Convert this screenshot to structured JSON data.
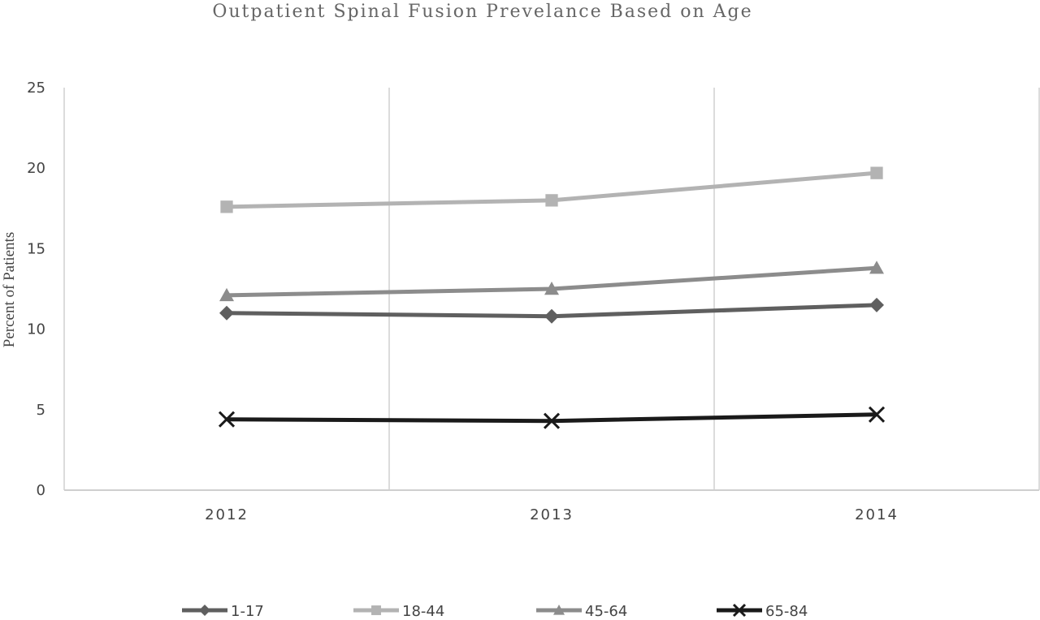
{
  "chart_data": {
    "type": "line",
    "title": "Outpatient Spinal Fusion Prevelance Based on Age",
    "xlabel": "",
    "ylabel": "Percent of Patients",
    "categories": [
      "2012",
      "2013",
      "2014"
    ],
    "ylim": [
      0,
      25
    ],
    "yticks": [
      "0",
      "5",
      "10",
      "15",
      "20",
      "25"
    ],
    "grid": "vertical",
    "legend_position": "bottom",
    "series": [
      {
        "name": "1-17",
        "values": [
          11.0,
          10.8,
          11.5
        ],
        "color": "#5f5f5f",
        "marker": "diamond"
      },
      {
        "name": "18-44",
        "values": [
          17.6,
          18.0,
          19.7
        ],
        "color": "#b3b3b3",
        "marker": "square"
      },
      {
        "name": "45-64",
        "values": [
          12.1,
          12.5,
          13.8
        ],
        "color": "#8c8c8c",
        "marker": "triangle"
      },
      {
        "name": "65-84",
        "values": [
          4.4,
          4.3,
          4.7
        ],
        "color": "#1a1a1a",
        "marker": "x"
      }
    ]
  }
}
